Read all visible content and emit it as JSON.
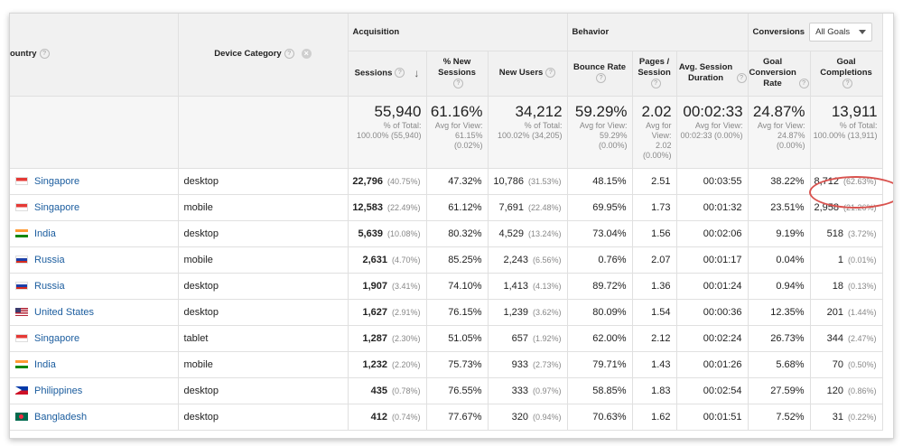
{
  "headers": {
    "country": "ountry",
    "device_category": "Device Category",
    "acquisition": "Acquisition",
    "behavior": "Behavior",
    "conversions": "Conversions",
    "goal_select": "All Goals",
    "sessions": "Sessions",
    "pct_new_sessions": "% New Sessions",
    "new_users": "New Users",
    "bounce_rate": "Bounce Rate",
    "pages_session": "Pages / Session",
    "avg_session_duration": "Avg. Session Duration",
    "goal_conversion_rate": "Goal Conversion Rate",
    "goal_completions": "Goal Completions",
    "help": "?"
  },
  "summary": {
    "sessions": {
      "value": "55,940",
      "note": "% of Total: 100.00% (55,940)"
    },
    "pct_new_sessions": {
      "value": "61.16%",
      "note": "Avg for View: 61.15% (0.02%)"
    },
    "new_users": {
      "value": "34,212",
      "note": "% of Total: 100.02% (34,205)"
    },
    "bounce_rate": {
      "value": "59.29%",
      "note": "Avg for View: 59.29% (0.00%)"
    },
    "pages_session": {
      "value": "2.02",
      "note": "Avg for View: 2.02 (0.00%)"
    },
    "avg_session_duration": {
      "value": "00:02:33",
      "note": "Avg for View: 00:02:33 (0.00%)"
    },
    "goal_conversion_rate": {
      "value": "24.87%",
      "note": "Avg for View: 24.87% (0.00%)"
    },
    "goal_completions": {
      "value": "13,911",
      "note": "% of Total: 100.00% (13,911)"
    }
  },
  "rows": [
    {
      "flag": "sg-flag-icon",
      "country": "Singapore",
      "device": "desktop",
      "sessions": "22,796",
      "sessions_pct": "(40.75%)",
      "new_sessions": "47.32%",
      "new_users": "10,786",
      "new_users_pct": "(31.53%)",
      "bounce": "48.15%",
      "pages": "2.51",
      "duration": "00:03:55",
      "conv_rate": "38.22%",
      "completions": "8,712",
      "completions_pct": "(62.63%)"
    },
    {
      "flag": "sg-flag-icon",
      "country": "Singapore",
      "device": "mobile",
      "sessions": "12,583",
      "sessions_pct": "(22.49%)",
      "new_sessions": "61.12%",
      "new_users": "7,691",
      "new_users_pct": "(22.48%)",
      "bounce": "69.95%",
      "pages": "1.73",
      "duration": "00:01:32",
      "conv_rate": "23.51%",
      "completions": "2,958",
      "completions_pct": "(21.26%)"
    },
    {
      "flag": "in-flag-icon",
      "country": "India",
      "device": "desktop",
      "sessions": "5,639",
      "sessions_pct": "(10.08%)",
      "new_sessions": "80.32%",
      "new_users": "4,529",
      "new_users_pct": "(13.24%)",
      "bounce": "73.04%",
      "pages": "1.56",
      "duration": "00:02:06",
      "conv_rate": "9.19%",
      "completions": "518",
      "completions_pct": "(3.72%)"
    },
    {
      "flag": "ru-flag-icon",
      "country": "Russia",
      "device": "mobile",
      "sessions": "2,631",
      "sessions_pct": "(4.70%)",
      "new_sessions": "85.25%",
      "new_users": "2,243",
      "new_users_pct": "(6.56%)",
      "bounce": "0.76%",
      "pages": "2.07",
      "duration": "00:01:17",
      "conv_rate": "0.04%",
      "completions": "1",
      "completions_pct": "(0.01%)"
    },
    {
      "flag": "ru-flag-icon",
      "country": "Russia",
      "device": "desktop",
      "sessions": "1,907",
      "sessions_pct": "(3.41%)",
      "new_sessions": "74.10%",
      "new_users": "1,413",
      "new_users_pct": "(4.13%)",
      "bounce": "89.72%",
      "pages": "1.36",
      "duration": "00:01:24",
      "conv_rate": "0.94%",
      "completions": "18",
      "completions_pct": "(0.13%)"
    },
    {
      "flag": "us-flag-icon",
      "country": "United States",
      "device": "desktop",
      "sessions": "1,627",
      "sessions_pct": "(2.91%)",
      "new_sessions": "76.15%",
      "new_users": "1,239",
      "new_users_pct": "(3.62%)",
      "bounce": "80.09%",
      "pages": "1.54",
      "duration": "00:00:36",
      "conv_rate": "12.35%",
      "completions": "201",
      "completions_pct": "(1.44%)"
    },
    {
      "flag": "sg-flag-icon",
      "country": "Singapore",
      "device": "tablet",
      "sessions": "1,287",
      "sessions_pct": "(2.30%)",
      "new_sessions": "51.05%",
      "new_users": "657",
      "new_users_pct": "(1.92%)",
      "bounce": "62.00%",
      "pages": "2.12",
      "duration": "00:02:24",
      "conv_rate": "26.73%",
      "completions": "344",
      "completions_pct": "(2.47%)"
    },
    {
      "flag": "in-flag-icon",
      "country": "India",
      "device": "mobile",
      "sessions": "1,232",
      "sessions_pct": "(2.20%)",
      "new_sessions": "75.73%",
      "new_users": "933",
      "new_users_pct": "(2.73%)",
      "bounce": "79.71%",
      "pages": "1.43",
      "duration": "00:01:26",
      "conv_rate": "5.68%",
      "completions": "70",
      "completions_pct": "(0.50%)"
    },
    {
      "flag": "ph-flag-icon",
      "country": "Philippines",
      "device": "desktop",
      "sessions": "435",
      "sessions_pct": "(0.78%)",
      "new_sessions": "76.55%",
      "new_users": "333",
      "new_users_pct": "(0.97%)",
      "bounce": "58.85%",
      "pages": "1.83",
      "duration": "00:02:54",
      "conv_rate": "27.59%",
      "completions": "120",
      "completions_pct": "(0.86%)"
    },
    {
      "flag": "bd-flag-icon",
      "country": "Bangladesh",
      "device": "desktop",
      "sessions": "412",
      "sessions_pct": "(0.74%)",
      "new_sessions": "77.67%",
      "new_users": "320",
      "new_users_pct": "(0.94%)",
      "bounce": "70.63%",
      "pages": "1.62",
      "duration": "00:01:51",
      "conv_rate": "7.52%",
      "completions": "31",
      "completions_pct": "(0.22%)"
    }
  ],
  "colors": {
    "link": "#1a5c9e",
    "highlight": "#d9534f",
    "header_bg": "#f1f1f1"
  }
}
